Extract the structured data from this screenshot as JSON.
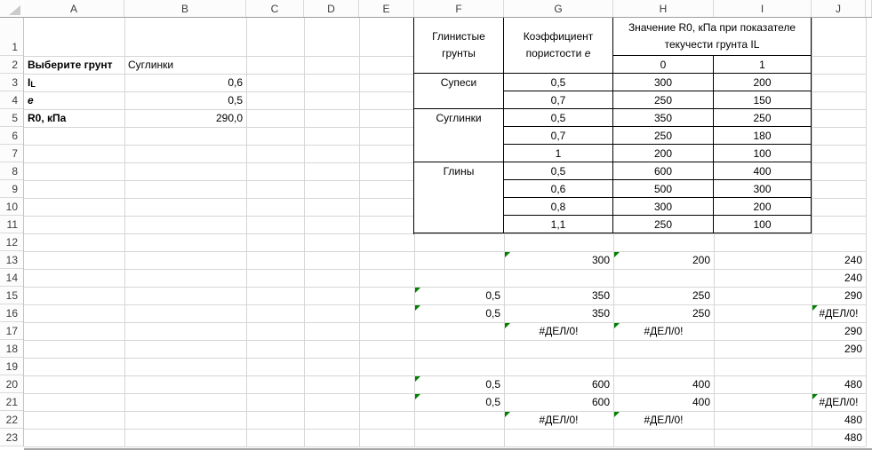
{
  "grid": {
    "column_headers": [
      "A",
      "B",
      "C",
      "D",
      "E",
      "F",
      "G",
      "H",
      "I",
      "J"
    ],
    "row_headers": [
      "1",
      "2",
      "3",
      "4",
      "5",
      "6",
      "7",
      "8",
      "9",
      "10",
      "11",
      "12",
      "13",
      "14",
      "15",
      "16",
      "17",
      "18",
      "19",
      "20",
      "21",
      "22",
      "23"
    ]
  },
  "input_panel": {
    "cells": [
      {
        "ref": "A2",
        "text": "Выберите грунт",
        "bold": true,
        "align": "left"
      },
      {
        "ref": "B2",
        "text": "Суглинки",
        "align": "left"
      },
      {
        "ref": "A3",
        "text": "IL",
        "bold": true,
        "align": "left",
        "subscript_after_first": true
      },
      {
        "ref": "B3",
        "text": "0,6",
        "align": "right"
      },
      {
        "ref": "A4",
        "text": "e",
        "bold": true,
        "italic": true,
        "align": "left"
      },
      {
        "ref": "B4",
        "text": "0,5",
        "align": "right"
      },
      {
        "ref": "A5",
        "text": "R0, кПа",
        "bold": true,
        "align": "left"
      },
      {
        "ref": "B5",
        "text": "290,0",
        "align": "right"
      }
    ]
  },
  "lookup_table": {
    "soil_type_header": "Глинистые грунты",
    "porosity_header": "Коэффициент пористости e",
    "r0_header": "Значение R0, кПа при показателе текучести грунта IL",
    "il_column_labels": [
      "0",
      "1"
    ],
    "groups": [
      {
        "soil": "Супеси",
        "rows": [
          {
            "e": "0,5",
            "r0_il0": "300",
            "r0_il1": "200"
          },
          {
            "e": "0,7",
            "r0_il0": "250",
            "r0_il1": "150"
          }
        ]
      },
      {
        "soil": "Суглинки",
        "rows": [
          {
            "e": "0,5",
            "r0_il0": "350",
            "r0_il1": "250"
          },
          {
            "e": "0,7",
            "r0_il0": "250",
            "r0_il1": "180"
          },
          {
            "e": "1",
            "r0_il0": "200",
            "r0_il1": "100"
          }
        ]
      },
      {
        "soil": "Глины",
        "rows": [
          {
            "e": "0,5",
            "r0_il0": "600",
            "r0_il1": "400"
          },
          {
            "e": "0,6",
            "r0_il0": "500",
            "r0_il1": "300"
          },
          {
            "e": "0,8",
            "r0_il0": "300",
            "r0_il1": "200"
          },
          {
            "e": "1,1",
            "r0_il0": "250",
            "r0_il1": "100"
          }
        ]
      }
    ]
  },
  "calc_cells": [
    {
      "ref": "G13",
      "text": "300",
      "align": "right",
      "error_flag": true
    },
    {
      "ref": "H13",
      "text": "200",
      "align": "right",
      "error_flag": true
    },
    {
      "ref": "J13",
      "text": "240",
      "align": "right"
    },
    {
      "ref": "J14",
      "text": "240",
      "align": "right"
    },
    {
      "ref": "F15",
      "text": "0,5",
      "align": "right",
      "error_flag": true
    },
    {
      "ref": "G15",
      "text": "350",
      "align": "right"
    },
    {
      "ref": "H15",
      "text": "250",
      "align": "right"
    },
    {
      "ref": "J15",
      "text": "290",
      "align": "right"
    },
    {
      "ref": "F16",
      "text": "0,5",
      "align": "right",
      "error_flag": true
    },
    {
      "ref": "G16",
      "text": "350",
      "align": "right"
    },
    {
      "ref": "H16",
      "text": "250",
      "align": "right"
    },
    {
      "ref": "J16",
      "text": "#ДЕЛ/0!",
      "align": "center",
      "error_flag": true
    },
    {
      "ref": "G17",
      "text": "#ДЕЛ/0!",
      "align": "center",
      "error_flag": true
    },
    {
      "ref": "H17",
      "text": "#ДЕЛ/0!",
      "align": "center",
      "error_flag": true
    },
    {
      "ref": "J17",
      "text": "290",
      "align": "right"
    },
    {
      "ref": "J18",
      "text": "290",
      "align": "right"
    },
    {
      "ref": "F20",
      "text": "0,5",
      "align": "right",
      "error_flag": true
    },
    {
      "ref": "G20",
      "text": "600",
      "align": "right"
    },
    {
      "ref": "H20",
      "text": "400",
      "align": "right"
    },
    {
      "ref": "J20",
      "text": "480",
      "align": "right"
    },
    {
      "ref": "F21",
      "text": "0,5",
      "align": "right",
      "error_flag": true
    },
    {
      "ref": "G21",
      "text": "600",
      "align": "right"
    },
    {
      "ref": "H21",
      "text": "400",
      "align": "right"
    },
    {
      "ref": "J21",
      "text": "#ДЕЛ/0!",
      "align": "center",
      "error_flag": true
    },
    {
      "ref": "G22",
      "text": "#ДЕЛ/0!",
      "align": "center",
      "error_flag": true
    },
    {
      "ref": "H22",
      "text": "#ДЕЛ/0!",
      "align": "center",
      "error_flag": true
    },
    {
      "ref": "J22",
      "text": "480",
      "align": "right"
    },
    {
      "ref": "J23",
      "text": "480",
      "align": "right"
    }
  ],
  "colors": {
    "grid_line": "#d6d6d6",
    "table_border": "#000000",
    "error_flag_green": "#008000",
    "header_text": "#3c3c3c",
    "cell_text": "#000000"
  }
}
